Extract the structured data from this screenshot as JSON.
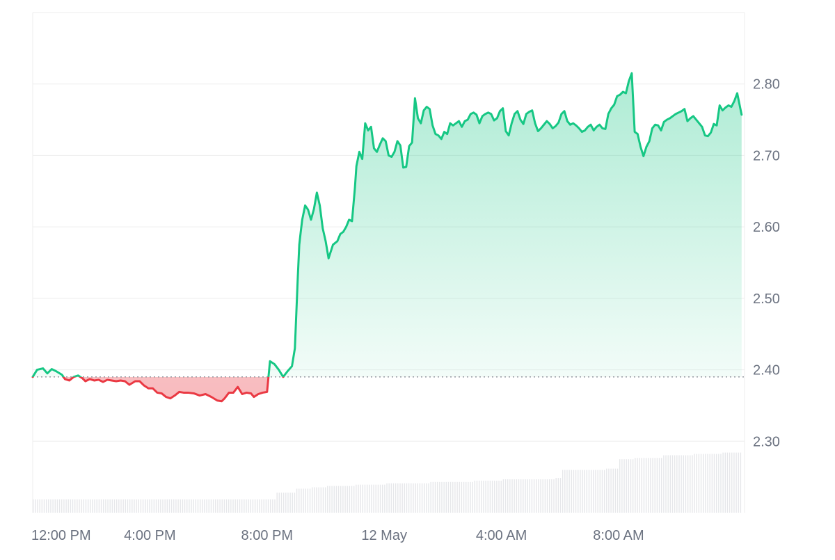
{
  "chart_data": {
    "type": "area",
    "title": "",
    "xlabel": "",
    "ylabel": "",
    "baseline": 2.39,
    "ylim": [
      2.2,
      2.9
    ],
    "y_ticks": [
      2.8,
      2.7,
      2.6,
      2.5,
      2.4,
      2.3
    ],
    "y_tick_labels": [
      "2.80",
      "2.70",
      "2.60",
      "2.50",
      "2.40",
      "2.30"
    ],
    "x_tick_labels": [
      "12:00 PM",
      "4:00 PM",
      "8:00 PM",
      "12 May",
      "4:00 AM",
      "8:00 AM"
    ],
    "x_tick_hours": [
      0,
      4,
      8,
      12,
      16,
      20
    ],
    "x_range_hours": [
      0,
      24.3
    ],
    "grid": true,
    "colors": {
      "up": "#16c784",
      "down": "#ea3943",
      "grid": "#eeeeee",
      "volume": "#e6e7ea",
      "baseline": "#8a8f98"
    },
    "price": {
      "hours": [
        0.0,
        0.15,
        0.35,
        0.5,
        0.65,
        0.8,
        1.0,
        1.1,
        1.25,
        1.4,
        1.55,
        1.7,
        1.8,
        1.95,
        2.1,
        2.25,
        2.4,
        2.55,
        2.7,
        2.85,
        3.0,
        3.15,
        3.3,
        3.5,
        3.65,
        3.8,
        3.95,
        4.1,
        4.25,
        4.4,
        4.55,
        4.7,
        4.85,
        5.0,
        5.15,
        5.3,
        5.5,
        5.7,
        5.9,
        6.1,
        6.3,
        6.45,
        6.55,
        6.7,
        6.85,
        7.0,
        7.15,
        7.3,
        7.45,
        7.55,
        7.7,
        7.85,
        8.0,
        8.1,
        8.25,
        8.4,
        8.55,
        8.7,
        8.85,
        8.95,
        9.05,
        9.1,
        9.15,
        9.2,
        9.3,
        9.4,
        9.5,
        9.6,
        9.7,
        9.8,
        9.9,
        10.0,
        10.1,
        10.25,
        10.4,
        10.5,
        10.6,
        10.7,
        10.8,
        10.9,
        11.0,
        11.05,
        11.15,
        11.25,
        11.35,
        11.45,
        11.55,
        11.65,
        11.75,
        11.85,
        11.95,
        12.05,
        12.15,
        12.25,
        12.35,
        12.45,
        12.55,
        12.65,
        12.75,
        12.85,
        12.95,
        13.05,
        13.15,
        13.25,
        13.35,
        13.45,
        13.55,
        13.65,
        13.75,
        13.85,
        13.95,
        14.05,
        14.15,
        14.25,
        14.35,
        14.45,
        14.55,
        14.65,
        14.75,
        14.85,
        14.95,
        15.05,
        15.15,
        15.25,
        15.35,
        15.45,
        15.55,
        15.65,
        15.75,
        15.85,
        15.95,
        16.05,
        16.15,
        16.25,
        16.35,
        16.45,
        16.55,
        16.65,
        16.75,
        16.85,
        16.95,
        17.05,
        17.15,
        17.25,
        17.35,
        17.45,
        17.55,
        17.65,
        17.75,
        17.85,
        17.95,
        18.05,
        18.15,
        18.25,
        18.35,
        18.45,
        18.55,
        18.65,
        18.75,
        18.85,
        18.95,
        19.05,
        19.15,
        19.25,
        19.35,
        19.45,
        19.55,
        19.65,
        19.75,
        19.85,
        19.95,
        20.05,
        20.15,
        20.25,
        20.35,
        20.45,
        20.55,
        20.65,
        20.75,
        20.85,
        20.95,
        21.05,
        21.15,
        21.25,
        21.35,
        21.45,
        21.55,
        21.65,
        21.75,
        21.85,
        21.95,
        22.05,
        22.15,
        22.25,
        22.35,
        22.45,
        22.55,
        22.65,
        22.75,
        22.85,
        22.95,
        23.05,
        23.15,
        23.25,
        23.35,
        23.45,
        23.55,
        23.65,
        23.75,
        23.85,
        23.95,
        24.05,
        24.2
      ],
      "values": [
        2.39,
        2.4,
        2.402,
        2.395,
        2.401,
        2.398,
        2.393,
        2.387,
        2.385,
        2.39,
        2.392,
        2.388,
        2.384,
        2.387,
        2.385,
        2.386,
        2.383,
        2.386,
        2.385,
        2.384,
        2.385,
        2.384,
        2.379,
        2.384,
        2.384,
        2.378,
        2.374,
        2.374,
        2.368,
        2.367,
        2.362,
        2.36,
        2.364,
        2.369,
        2.368,
        2.368,
        2.367,
        2.364,
        2.366,
        2.362,
        2.357,
        2.356,
        2.36,
        2.368,
        2.368,
        2.376,
        2.366,
        2.368,
        2.367,
        2.362,
        2.366,
        2.368,
        2.369,
        2.412,
        2.408,
        2.4,
        2.39,
        2.398,
        2.405,
        2.43,
        2.53,
        2.575,
        2.593,
        2.61,
        2.63,
        2.624,
        2.61,
        2.625,
        2.648,
        2.63,
        2.598,
        2.58,
        2.556,
        2.575,
        2.58,
        2.59,
        2.593,
        2.6,
        2.61,
        2.608,
        2.655,
        2.685,
        2.705,
        2.695,
        2.745,
        2.735,
        2.74,
        2.71,
        2.705,
        2.715,
        2.724,
        2.72,
        2.7,
        2.698,
        2.705,
        2.72,
        2.714,
        2.683,
        2.684,
        2.713,
        2.718,
        2.78,
        2.752,
        2.745,
        2.763,
        2.768,
        2.765,
        2.742,
        2.73,
        2.728,
        2.723,
        2.733,
        2.73,
        2.745,
        2.742,
        2.745,
        2.748,
        2.74,
        2.748,
        2.75,
        2.758,
        2.76,
        2.757,
        2.745,
        2.755,
        2.758,
        2.76,
        2.758,
        2.749,
        2.752,
        2.762,
        2.766,
        2.734,
        2.728,
        2.745,
        2.758,
        2.762,
        2.75,
        2.744,
        2.758,
        2.761,
        2.763,
        2.745,
        2.734,
        2.738,
        2.743,
        2.748,
        2.744,
        2.738,
        2.741,
        2.746,
        2.758,
        2.762,
        2.748,
        2.743,
        2.745,
        2.742,
        2.738,
        2.733,
        2.735,
        2.74,
        2.743,
        2.735,
        2.74,
        2.743,
        2.738,
        2.737,
        2.758,
        2.766,
        2.771,
        2.783,
        2.785,
        2.789,
        2.787,
        2.804,
        2.815,
        2.733,
        2.73,
        2.712,
        2.699,
        2.712,
        2.72,
        2.738,
        2.743,
        2.742,
        2.735,
        2.747,
        2.75,
        2.752,
        2.755,
        2.758,
        2.76,
        2.762,
        2.765,
        2.748,
        2.752,
        2.755,
        2.75,
        2.745,
        2.74,
        2.728,
        2.727,
        2.732,
        2.744,
        2.742,
        2.77,
        2.763,
        2.767,
        2.77,
        2.768,
        2.776,
        2.787,
        2.757
      ]
    },
    "volume": {
      "hours": [
        0.0,
        8.0,
        8.3,
        9.0,
        9.5,
        10.0,
        11.0,
        12.0,
        13.5,
        15.0,
        16.0,
        17.8,
        18.0,
        19.5,
        20.0,
        20.5,
        21.5,
        22.5,
        23.5,
        24.2
      ],
      "values": [
        10,
        10,
        15,
        18,
        19,
        20,
        21,
        22,
        23,
        24,
        25,
        26,
        32,
        33,
        40,
        41,
        43,
        44,
        45,
        45
      ]
    }
  }
}
